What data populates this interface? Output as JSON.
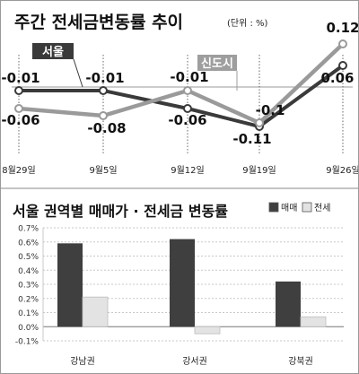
{
  "panel1": {
    "title": "주간 전세금변동률 추이",
    "unit": "(단위 : %)"
  },
  "panel2": {
    "title": "서울 권역별 매매가 · 전세금 변동률"
  },
  "chart_data": [
    {
      "type": "line",
      "title": "주간 전세금변동률 추이",
      "unit": "%",
      "x": [
        "8월29일",
        "9월5일",
        "9월12일",
        "9월19일",
        "9월26일"
      ],
      "series": [
        {
          "name": "서울",
          "color": "#3a3a3a",
          "values": [
            -0.01,
            -0.01,
            -0.06,
            -0.11,
            0.06
          ]
        },
        {
          "name": "신도시",
          "color": "#9a9a9a",
          "values": [
            -0.06,
            -0.08,
            -0.01,
            -0.1,
            0.12
          ]
        }
      ],
      "data_labels": {
        "서울": [
          "-0.01",
          "-0.01",
          "-0.06",
          "-0.11",
          "0.06"
        ],
        "신도시": [
          "-0.06",
          "-0.08",
          "-0.01",
          "-0.1",
          "0.12"
        ]
      },
      "ylim": [
        -0.13,
        0.14
      ],
      "grid": false
    },
    {
      "type": "bar",
      "title": "서울 권역별 매매가 · 전세금 변동률",
      "categories": [
        "강남권",
        "강서권",
        "강북권"
      ],
      "series": [
        {
          "name": "매매",
          "color": "#3f3f3f",
          "values": [
            0.59,
            0.62,
            0.32
          ]
        },
        {
          "name": "전세",
          "color": "#e3e3e3",
          "values": [
            0.21,
            -0.05,
            0.07
          ]
        }
      ],
      "yticks": [
        "0.7%",
        "0.6%",
        "0.5%",
        "0.4%",
        "0.3%",
        "0.2%",
        "0.1%",
        "0.0%",
        "-0.1%"
      ],
      "ytick_values": [
        0.7,
        0.6,
        0.5,
        0.4,
        0.3,
        0.2,
        0.1,
        0.0,
        -0.1
      ],
      "ylim": [
        -0.1,
        0.7
      ],
      "grid": true,
      "legend": "top-right"
    }
  ]
}
